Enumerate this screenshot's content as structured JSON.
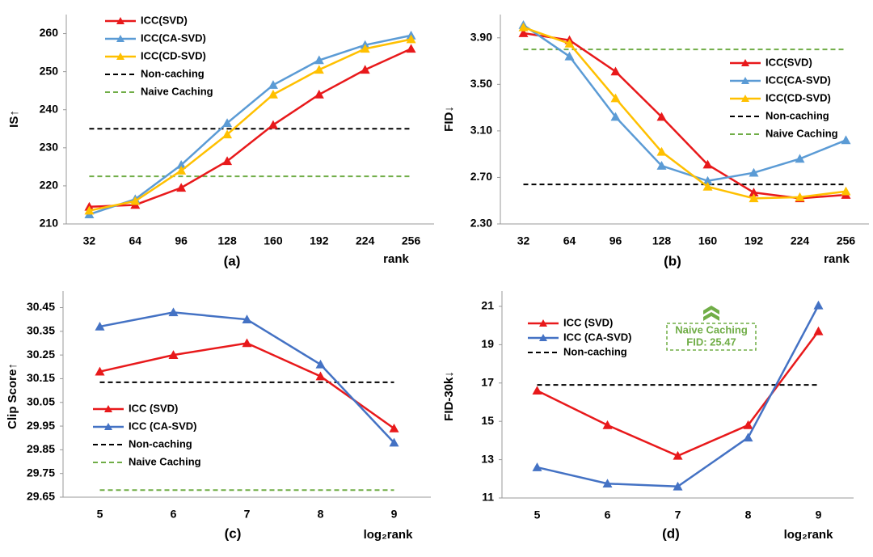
{
  "chart_data": [
    {
      "type": "line",
      "y_label": "IS↑",
      "x_label": "rank",
      "caption": "(a)",
      "legend": "upper left",
      "categories": [
        "32",
        "64",
        "96",
        "128",
        "160",
        "192",
        "224",
        "256"
      ],
      "series": [
        {
          "name": "ICC(SVD)",
          "color": "#e8191b",
          "values": [
            214.5,
            215,
            219.5,
            226.5,
            236,
            244,
            250.5,
            256
          ]
        },
        {
          "name": "ICC(CA-SVD)",
          "color": "#5b9bd5",
          "values": [
            212.5,
            216.5,
            225.5,
            236.5,
            246.5,
            253,
            257,
            259.5
          ]
        },
        {
          "name": "ICC(CD-SVD)",
          "color": "#ffc000",
          "values": [
            213.5,
            216,
            224,
            233.5,
            244,
            250.5,
            256,
            258.5
          ]
        }
      ],
      "hlines": [
        {
          "name": "Non-caching",
          "color": "#000000",
          "value": 235
        },
        {
          "name": "Naive Caching",
          "color": "#70ad47",
          "value": 222.5
        }
      ],
      "ylim": [
        210,
        265
      ],
      "yticks": [
        210,
        220,
        230,
        240,
        250,
        260
      ]
    },
    {
      "type": "line",
      "y_label": "FID↓",
      "x_label": "rank",
      "caption": "(b)",
      "legend": "center right",
      "categories": [
        "32",
        "64",
        "96",
        "128",
        "160",
        "192",
        "224",
        "256"
      ],
      "series": [
        {
          "name": "ICC(SVD)",
          "color": "#e8191b",
          "values": [
            3.94,
            3.88,
            3.61,
            3.22,
            2.81,
            2.57,
            2.52,
            2.55
          ]
        },
        {
          "name": "ICC(CA-SVD)",
          "color": "#5b9bd5",
          "values": [
            4.01,
            3.74,
            3.22,
            2.8,
            2.67,
            2.74,
            2.86,
            3.02
          ]
        },
        {
          "name": "ICC(CD-SVD)",
          "color": "#ffc000",
          "values": [
            3.99,
            3.85,
            3.38,
            2.92,
            2.62,
            2.52,
            2.53,
            2.58
          ]
        }
      ],
      "hlines": [
        {
          "name": "Non-caching",
          "color": "#000000",
          "value": 2.64
        },
        {
          "name": "Naive Caching",
          "color": "#70ad47",
          "value": 3.8
        }
      ],
      "ylim": [
        2.3,
        4.1
      ],
      "yticks": [
        {
          "value": 2.3,
          "label": "2.30"
        },
        {
          "value": 2.7,
          "label": "2.70"
        },
        {
          "value": 3.1,
          "label": "3.10"
        },
        {
          "value": 3.5,
          "label": "3.50"
        },
        {
          "value": 3.9,
          "label": "3.90"
        }
      ]
    },
    {
      "type": "line",
      "y_label": "Clip Score↑",
      "x_label": "log₂rank",
      "caption": "(c)",
      "legend": "lower left",
      "categories": [
        "5",
        "6",
        "7",
        "8",
        "9"
      ],
      "series": [
        {
          "name": "ICC (SVD)",
          "color": "#e8191b",
          "values": [
            30.18,
            30.25,
            30.3,
            30.16,
            29.94
          ]
        },
        {
          "name": "ICC (CA-SVD)",
          "color": "#4472c4",
          "values": [
            30.37,
            30.43,
            30.4,
            30.21,
            29.88
          ]
        }
      ],
      "hlines": [
        {
          "name": "Non-caching",
          "color": "#000000",
          "value": 30.135
        },
        {
          "name": "Naive Caching",
          "color": "#70ad47",
          "value": 29.68
        }
      ],
      "ylim": [
        29.65,
        30.52
      ],
      "yticks": [
        29.65,
        29.75,
        29.85,
        29.95,
        30.05,
        30.15,
        30.25,
        30.35,
        30.45
      ]
    },
    {
      "type": "line",
      "y_label": "FID-30k↓",
      "x_label": "log₂rank",
      "caption": "(d)",
      "legend": "upper left",
      "categories": [
        "5",
        "6",
        "7",
        "8",
        "9"
      ],
      "series": [
        {
          "name": "ICC (SVD)",
          "color": "#e8191b",
          "values": [
            16.6,
            14.8,
            13.2,
            14.8,
            19.7
          ]
        },
        {
          "name": "ICC (CA-SVD)",
          "color": "#4472c4",
          "values": [
            12.6,
            11.75,
            11.6,
            14.15,
            21.05
          ]
        }
      ],
      "hlines": [
        {
          "name": "Non-caching",
          "color": "#000000",
          "value": 16.9
        }
      ],
      "annotation": [
        "Naive Caching",
        "FID: 25.47"
      ],
      "ylim": [
        11,
        21.8
      ],
      "yticks": [
        11,
        13,
        15,
        17,
        19,
        21
      ]
    }
  ]
}
